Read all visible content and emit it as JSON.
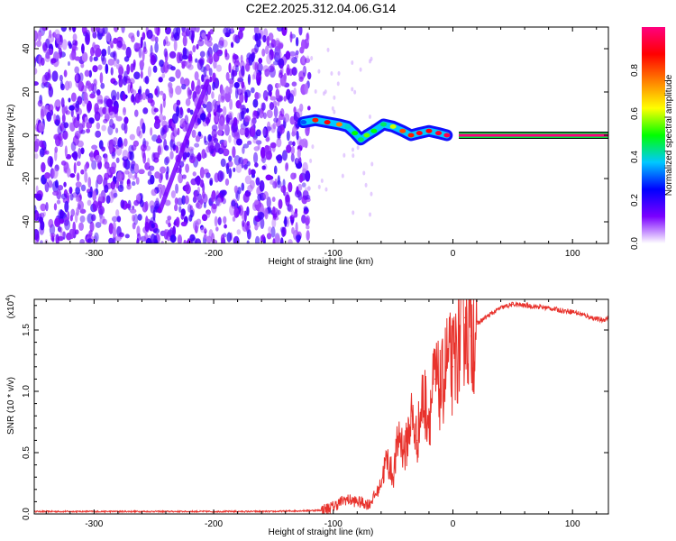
{
  "title": "C2E2.2025.312.04.06.G14",
  "chart_data": [
    {
      "type": "heatmap",
      "xlabel": "Height of straight line (km)",
      "ylabel": "Frequency (Hz)",
      "xlim": [
        -350,
        130
      ],
      "ylim": [
        -50,
        50
      ],
      "xticks": [
        -300,
        -200,
        -100,
        0,
        100
      ],
      "yticks": [
        -40,
        -20,
        0,
        20,
        40
      ],
      "ridge_points": [
        {
          "x": -125,
          "y": 6,
          "amp": 0.3
        },
        {
          "x": -115,
          "y": 7,
          "amp": 0.85
        },
        {
          "x": -105,
          "y": 6,
          "amp": 0.88
        },
        {
          "x": -95,
          "y": 5,
          "amp": 0.75
        },
        {
          "x": -88,
          "y": 4,
          "amp": 0.4
        },
        {
          "x": -82,
          "y": 1,
          "amp": 0.5
        },
        {
          "x": -77,
          "y": -2,
          "amp": 0.45
        },
        {
          "x": -72,
          "y": 0,
          "amp": 0.55
        },
        {
          "x": -66,
          "y": 2,
          "amp": 0.5
        },
        {
          "x": -58,
          "y": 5,
          "amp": 0.45
        },
        {
          "x": -50,
          "y": 4,
          "amp": 0.6
        },
        {
          "x": -42,
          "y": 2,
          "amp": 0.8
        },
        {
          "x": -35,
          "y": 0,
          "amp": 0.85
        },
        {
          "x": -28,
          "y": 1,
          "amp": 0.9
        },
        {
          "x": -20,
          "y": 2,
          "amp": 0.88
        },
        {
          "x": -12,
          "y": 1,
          "amp": 0.92
        },
        {
          "x": -5,
          "y": 0,
          "amp": 0.95
        }
      ],
      "steady_line": {
        "x_from": 5,
        "x_to": 130,
        "y": 0,
        "amp": 1.0
      },
      "diagonal_streak": [
        {
          "x": -245,
          "y": -35
        },
        {
          "x": -205,
          "y": 25
        }
      ],
      "colorbar": {
        "label": "Normalized spectral amplitude",
        "range": [
          0,
          1
        ],
        "ticks": [
          "0.0",
          "0.2",
          "0.4",
          "0.6",
          "0.8"
        ],
        "colors": [
          "#ffffff",
          "#7a00ff",
          "#0000ff",
          "#00c8ff",
          "#00ff00",
          "#ffff00",
          "#ff8000",
          "#ff0000",
          "#ff007f"
        ]
      }
    },
    {
      "type": "line",
      "xlabel": "Height of straight line (km)",
      "ylabel": "SNR (10 * v/v)",
      "y_multiplier": "(x10",
      "y_multiplier_exp": "4",
      "y_multiplier_close": ")",
      "xlim": [
        -350,
        130
      ],
      "ylim": [
        0,
        1.75
      ],
      "xticks": [
        -300,
        -200,
        -100,
        0,
        100
      ],
      "yticks": [
        "0.0",
        "0.5",
        "1.0",
        "1.5"
      ],
      "series": [
        {
          "color": "#e8322c",
          "points": [
            [
              -350,
              0.02
            ],
            [
              -300,
              0.02
            ],
            [
              -250,
              0.02
            ],
            [
              -200,
              0.02
            ],
            [
              -150,
              0.02
            ],
            [
              -110,
              0.03
            ],
            [
              -100,
              0.06
            ],
            [
              -90,
              0.12
            ],
            [
              -80,
              0.1
            ],
            [
              -70,
              0.08
            ],
            [
              -62,
              0.2
            ],
            [
              -55,
              0.45
            ],
            [
              -50,
              0.3
            ],
            [
              -45,
              0.65
            ],
            [
              -40,
              0.5
            ],
            [
              -35,
              0.8
            ],
            [
              -30,
              0.6
            ],
            [
              -25,
              0.95
            ],
            [
              -20,
              0.8
            ],
            [
              -15,
              1.1
            ],
            [
              -10,
              1.0
            ],
            [
              -5,
              1.25
            ],
            [
              0,
              1.2
            ],
            [
              5,
              1.4
            ],
            [
              10,
              1.6
            ],
            [
              15,
              1.45
            ],
            [
              20,
              1.55
            ],
            [
              30,
              1.62
            ],
            [
              40,
              1.68
            ],
            [
              50,
              1.71
            ],
            [
              60,
              1.7
            ],
            [
              70,
              1.69
            ],
            [
              80,
              1.68
            ],
            [
              90,
              1.66
            ],
            [
              100,
              1.65
            ],
            [
              110,
              1.62
            ],
            [
              120,
              1.59
            ],
            [
              125,
              1.58
            ],
            [
              130,
              1.6
            ]
          ]
        }
      ]
    }
  ]
}
